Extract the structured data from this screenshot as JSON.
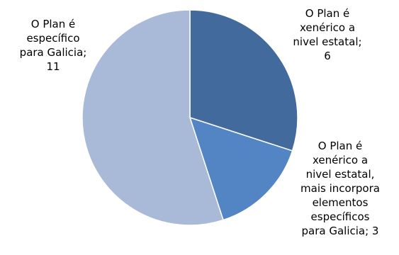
{
  "chart_data": {
    "type": "pie",
    "title": "",
    "categories": [
      "O Plan é xenérico a nivel estatal",
      "O Plan é xenérico a nivel estatal, mais incorpora elementos específicos para Galicia",
      "O Plan é específico para Galicia"
    ],
    "values": [
      6,
      3,
      11
    ],
    "colors": [
      "#436a9d",
      "#5384c4",
      "#a9bad9"
    ],
    "data_labels": [
      "O Plan é\nxenérico a\nnivel estatal;\n6",
      "O Plan é\nxenérico a\nnivel estatal,\nmais incorpora\nelementos\nespecíficos\npara Galicia; 3",
      "O Plan é\nespecífico\npara Galicia;\n11"
    ],
    "legend": "none"
  }
}
